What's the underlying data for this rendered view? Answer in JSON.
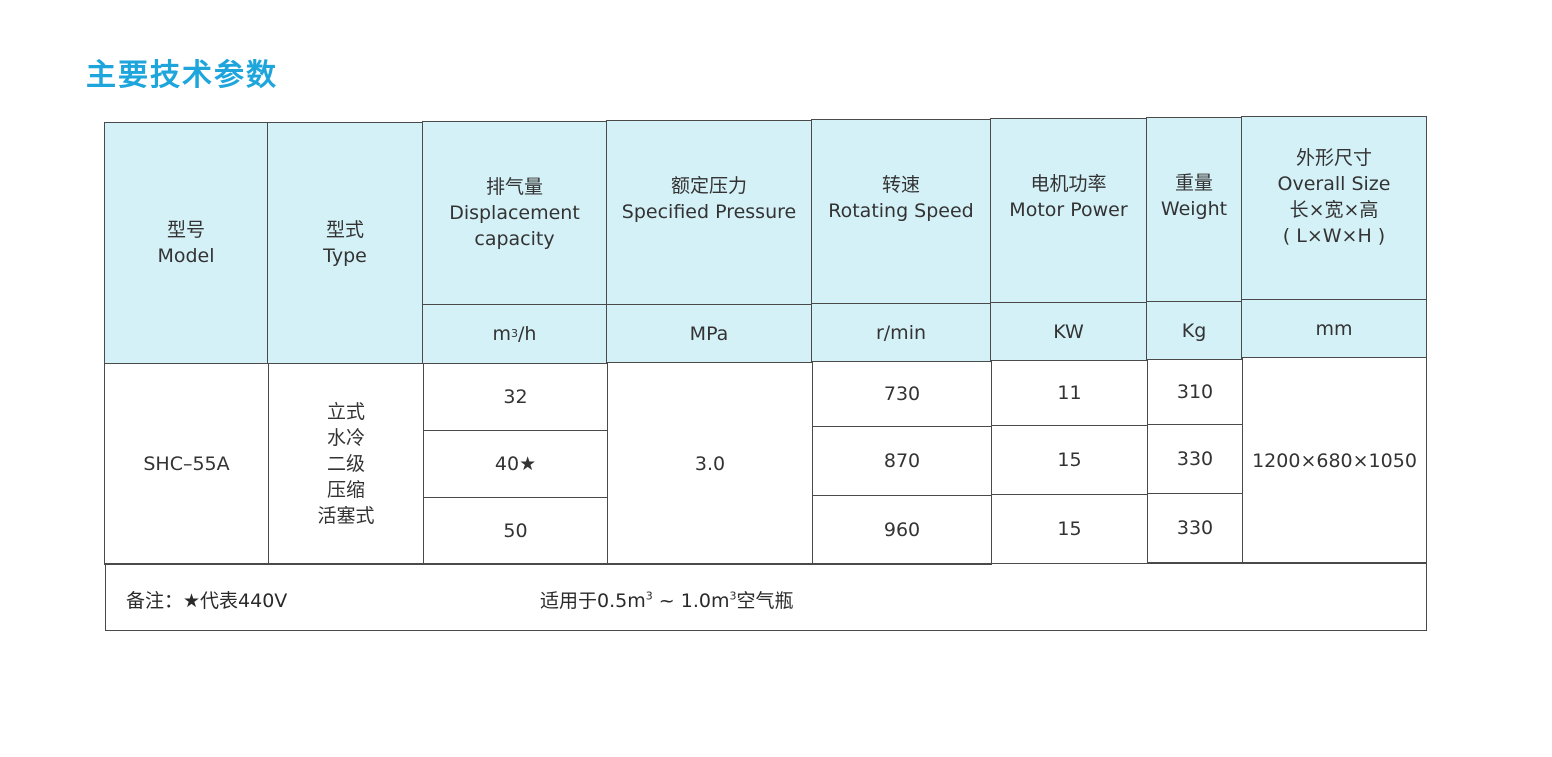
{
  "title": "主要技术参数",
  "header": {
    "model": [
      "型号",
      "Model"
    ],
    "type": [
      "型式",
      "Type"
    ],
    "displacement": [
      "排气量",
      "Displacement",
      "capacity"
    ],
    "pressure": [
      "额定压力",
      "Specified Pressure"
    ],
    "speed": [
      "转速",
      "Rotating Speed"
    ],
    "power": [
      "电机功率",
      "Motor Power"
    ],
    "weight": [
      "重量",
      "Weight"
    ],
    "size": [
      "外形尺寸",
      "Overall Size",
      "长×宽×高",
      "( L×W×H )"
    ]
  },
  "units": {
    "displacement_base": "m",
    "displacement_sup": "3",
    "displacement_tail": "/h",
    "pressure": "MPa",
    "speed": "r/min",
    "power": "KW",
    "weight": "Kg",
    "size": "mm"
  },
  "row": {
    "model": "SHC–55A",
    "type": [
      "立式",
      "水冷",
      "二级",
      "压缩",
      "活塞式"
    ],
    "displacement": [
      "32",
      "40★",
      "50"
    ],
    "pressure": "3.0",
    "speed": [
      "730",
      "870",
      "960"
    ],
    "power": [
      "11",
      "15",
      "15"
    ],
    "weight": [
      "310",
      "330",
      "330"
    ],
    "size": "1200×680×1050"
  },
  "footer": {
    "note": "备注：★代表440V",
    "usage_a": "适用于0.5m",
    "usage_b": " ~ 1.0m",
    "usage_c": "空气瓶",
    "sup": "3"
  }
}
